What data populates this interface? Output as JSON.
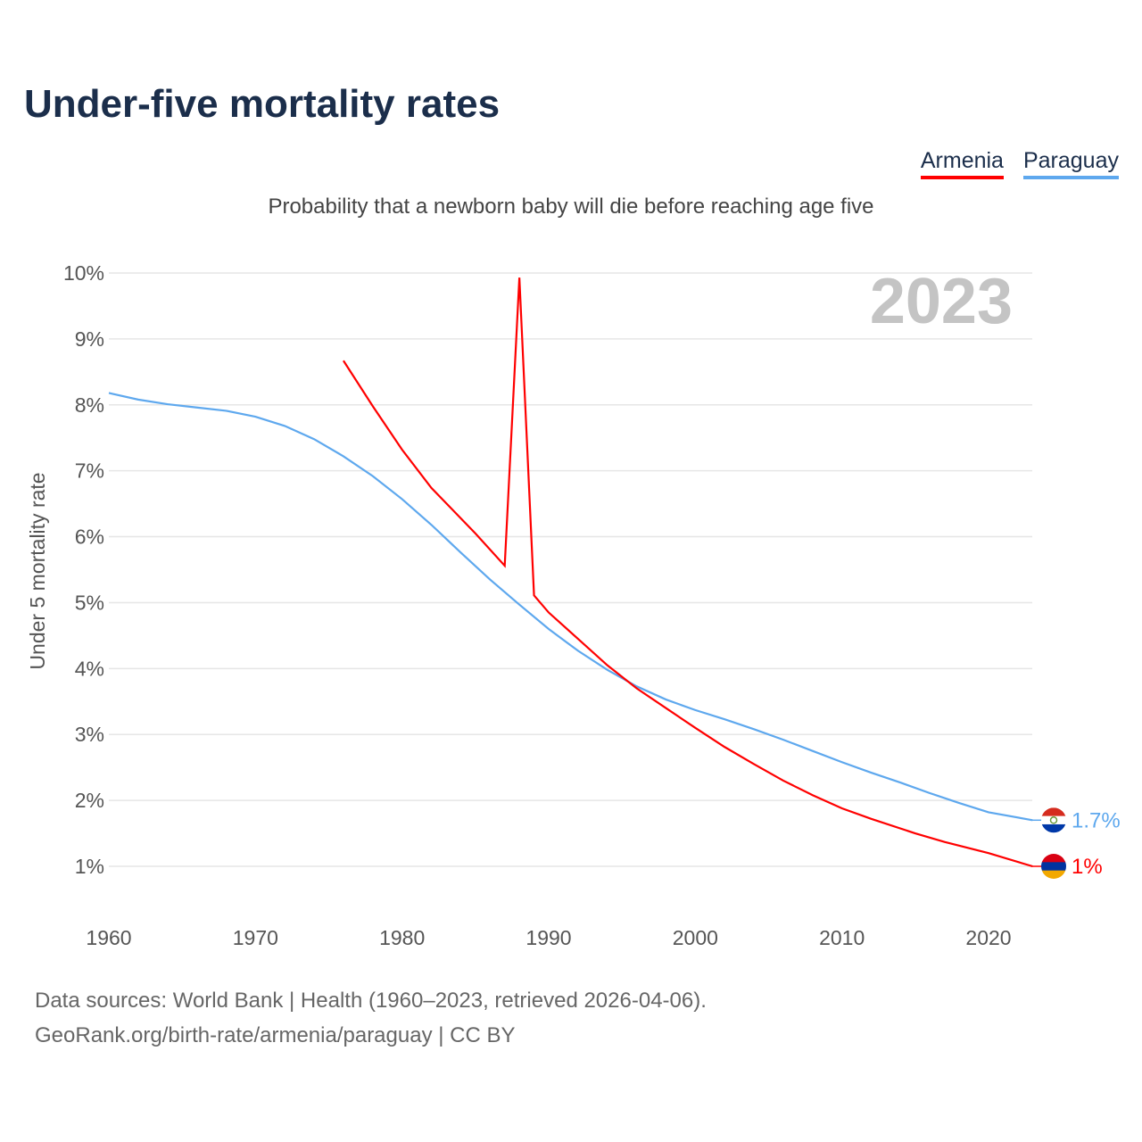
{
  "chart_data": {
    "type": "line",
    "title": "Under-five mortality rates",
    "subtitle": "Probability that a newborn baby will die before reaching age five",
    "ylabel": "Under 5 mortality rate",
    "xlabel": "",
    "year_label": "2023",
    "xlim": [
      1960,
      2023
    ],
    "ylim": [
      0.3,
      10.3
    ],
    "x_ticks": [
      1960,
      1970,
      1980,
      1990,
      2000,
      2010,
      2020
    ],
    "y_ticks": [
      1,
      2,
      3,
      4,
      5,
      6,
      7,
      8,
      9,
      10
    ],
    "y_tick_labels": [
      "1%",
      "2%",
      "3%",
      "4%",
      "5%",
      "6%",
      "7%",
      "8%",
      "9%",
      "10%"
    ],
    "grid": true,
    "legend_position": "top-right",
    "series": [
      {
        "name": "Armenia",
        "color": "#ff0000",
        "end_label": "1%",
        "x": [
          1976,
          1978,
          1980,
          1982,
          1985,
          1987,
          1988,
          1989,
          1990,
          1992,
          1994,
          1996,
          1998,
          2000,
          2002,
          2004,
          2006,
          2008,
          2010,
          2012,
          2015,
          2017,
          2020,
          2023
        ],
        "values": [
          8.67,
          7.98,
          7.32,
          6.74,
          6.05,
          5.56,
          9.93,
          5.11,
          4.85,
          4.45,
          4.05,
          3.7,
          3.4,
          3.1,
          2.81,
          2.55,
          2.3,
          2.08,
          1.88,
          1.72,
          1.5,
          1.37,
          1.2,
          1.0
        ]
      },
      {
        "name": "Paraguay",
        "color": "#5ea8ee",
        "end_label": "1.7%",
        "x": [
          1960,
          1962,
          1964,
          1966,
          1968,
          1970,
          1972,
          1974,
          1976,
          1978,
          1980,
          1982,
          1984,
          1986,
          1988,
          1990,
          1992,
          1994,
          1996,
          1998,
          2000,
          2002,
          2004,
          2006,
          2008,
          2010,
          2012,
          2014,
          2016,
          2018,
          2020,
          2023
        ],
        "values": [
          8.18,
          8.08,
          8.01,
          7.96,
          7.91,
          7.82,
          7.68,
          7.48,
          7.22,
          6.92,
          6.57,
          6.18,
          5.76,
          5.35,
          4.97,
          4.6,
          4.27,
          3.98,
          3.73,
          3.53,
          3.37,
          3.23,
          3.08,
          2.92,
          2.75,
          2.58,
          2.42,
          2.27,
          2.11,
          1.96,
          1.82,
          1.7
        ]
      }
    ]
  },
  "footer": {
    "line1": "Data sources: World Bank | Health (1960–2023, retrieved 2026-04-06).",
    "line2": "GeoRank.org/birth-rate/armenia/paraguay | CC BY"
  }
}
